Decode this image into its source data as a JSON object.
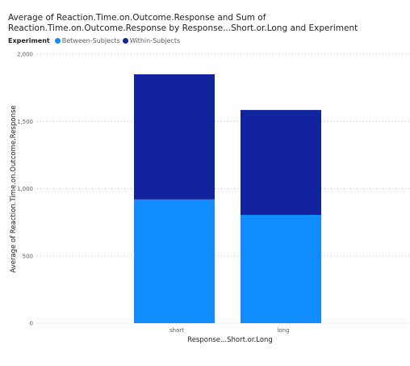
{
  "chart_data": {
    "type": "bar",
    "stacked": true,
    "title": "Average of Reaction.Time.on.Outcome.Response and Sum of Reaction.Time.on.Outcome.Response by Response...Short.or.Long and Experiment",
    "legend_title": "Experiment",
    "legend_position": "top-left",
    "xlabel": "Response...Short.or.Long",
    "ylabel": "Average of Reaction.Time.on.Outcome.Response",
    "categories": [
      "short",
      "long"
    ],
    "series": [
      {
        "name": "Between-Subjects",
        "color": "#118dff",
        "values": [
          920,
          805
        ]
      },
      {
        "name": "Within-Subjects",
        "color": "#12239e",
        "values": [
          930,
          780
        ]
      }
    ],
    "ylim": [
      0,
      2000
    ],
    "yticks": [
      0,
      500,
      1000,
      1500,
      2000
    ],
    "ytick_labels": [
      "0",
      "500",
      "1,000",
      "1,500",
      "2,000"
    ],
    "grid": true
  }
}
